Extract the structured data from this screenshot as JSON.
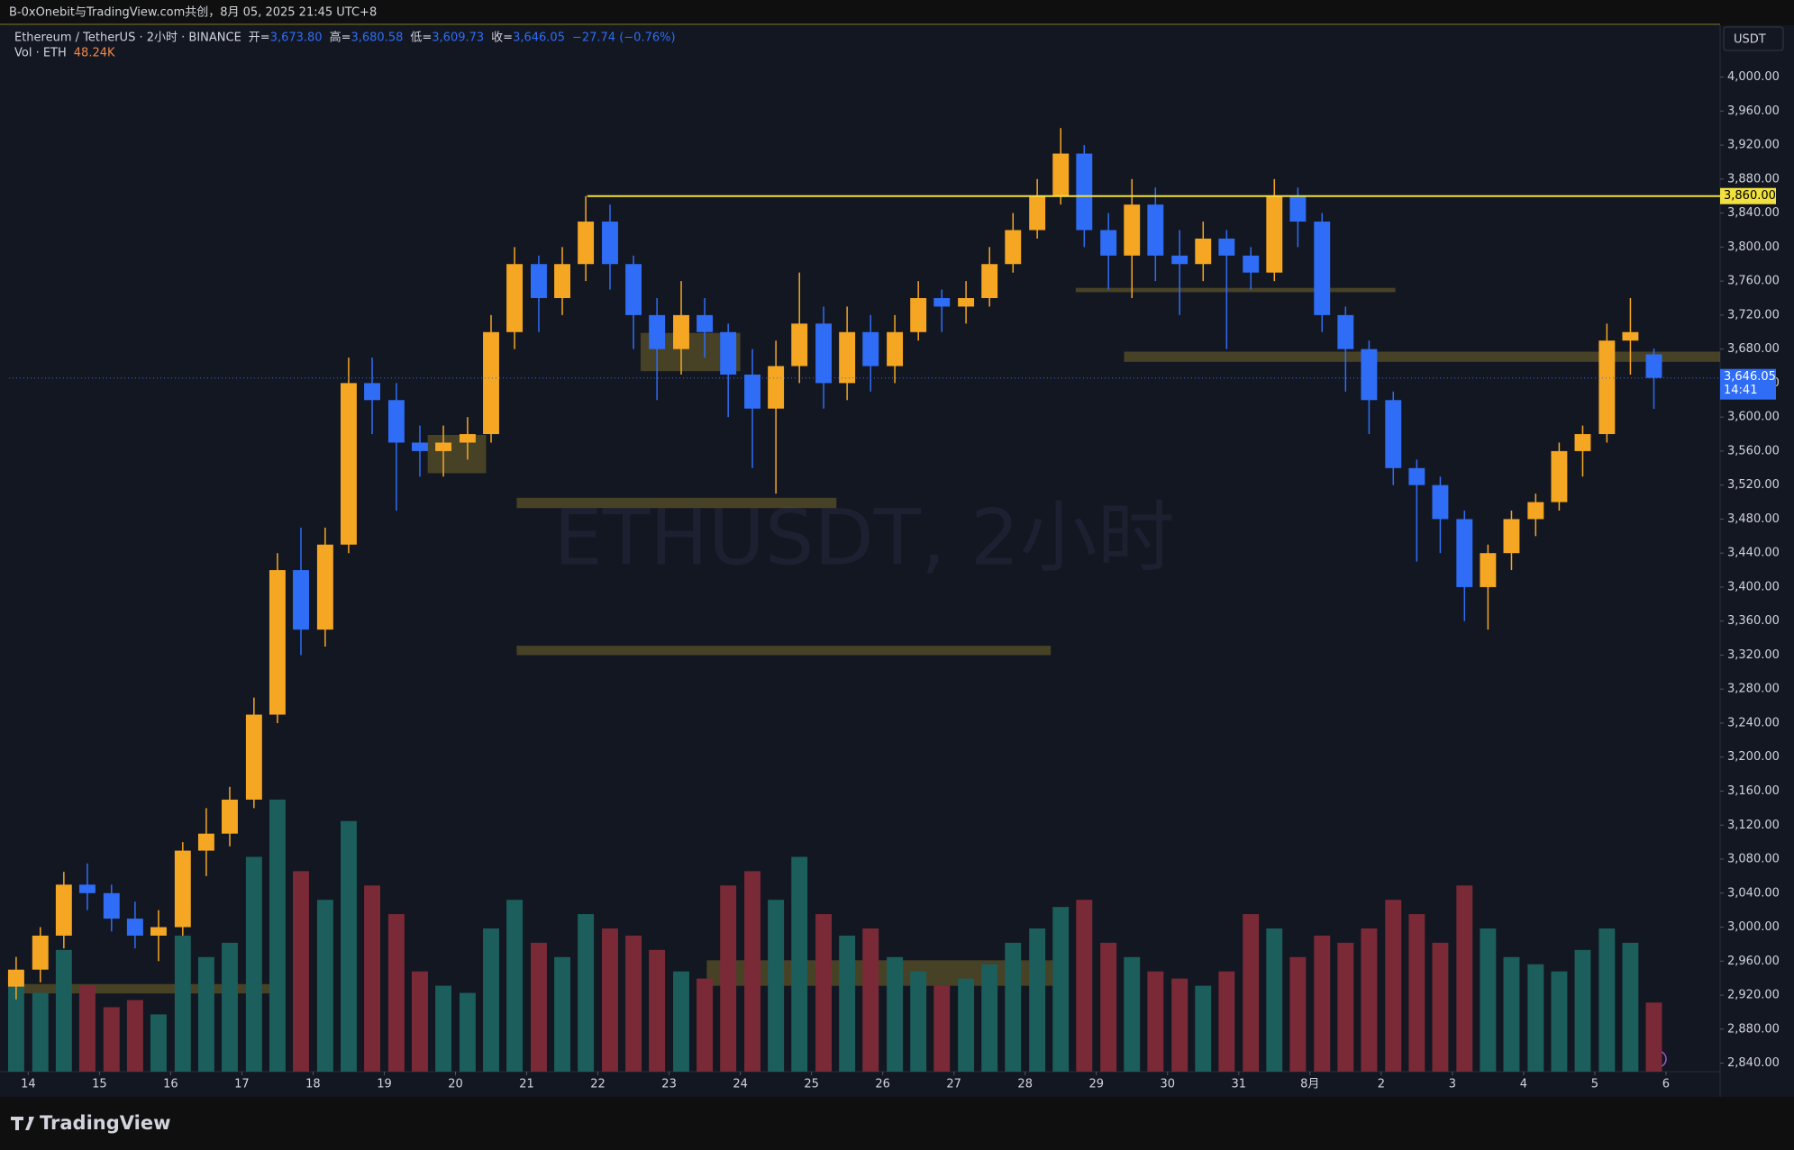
{
  "header": {
    "title": "B-0xOnebit与TradingView.com共创，8月 05, 2025 21:45 UTC+8"
  },
  "chart_data": {
    "type": "candlestick",
    "legend": {
      "symbol": "Ethereum / TetherUS · 2小时 · BINANCE",
      "fields": [
        {
          "label": "开=",
          "value": "3,673.80"
        },
        {
          "label": "高=",
          "value": "3,680.58"
        },
        {
          "label": "低=",
          "value": "3,609.73"
        },
        {
          "label": "收=",
          "value": "3,646.05"
        }
      ],
      "change": "−27.74 (−0.76%)",
      "volume_label": "Vol · ETH",
      "volume_value": "48.24K"
    },
    "watermark": "ETHUSDT, 2小时",
    "currency": "USDT",
    "up_color": "#f5a623",
    "down_color": "#2f6df6",
    "volume_up_color": "#1b5e5c",
    "volume_down_color": "#7a2a36",
    "x": [
      -0.17,
      0.17,
      0.5,
      0.83,
      1.17,
      1.5,
      1.83,
      2.17,
      2.5,
      2.83,
      3.17,
      3.5,
      3.83,
      4.17,
      4.5,
      4.83,
      5.17,
      5.5,
      5.83,
      6.17,
      6.5,
      6.83,
      7.17,
      7.5,
      7.83,
      8.17,
      8.5,
      8.83,
      9.17,
      9.5,
      9.83,
      10.17,
      10.5,
      10.83,
      11.17,
      11.5,
      11.83,
      12.17,
      12.5,
      12.83,
      13.17,
      13.5,
      13.83,
      14.17,
      14.5,
      14.83,
      15.17,
      15.5,
      15.83,
      16.17,
      16.5,
      16.83,
      17.17,
      17.5,
      17.83,
      18.17,
      18.5,
      18.83,
      19.17,
      19.5,
      19.83,
      20.17,
      20.5,
      20.83,
      21.17,
      21.5,
      21.83,
      22.17,
      22.5,
      22.83
    ],
    "open": [
      2930,
      2950,
      2990,
      3050,
      3040,
      3010,
      2990,
      3000,
      3090,
      3110,
      3150,
      3250,
      3420,
      3350,
      3450,
      3640,
      3620,
      3570,
      3560,
      3570,
      3580,
      3700,
      3780,
      3740,
      3780,
      3830,
      3780,
      3720,
      3680,
      3720,
      3700,
      3650,
      3610,
      3660,
      3710,
      3640,
      3700,
      3660,
      3700,
      3740,
      3730,
      3740,
      3780,
      3820,
      3860,
      3910,
      3820,
      3790,
      3850,
      3790,
      3780,
      3810,
      3790,
      3770,
      3860,
      3830,
      3720,
      3680,
      3620,
      3540,
      3520,
      3480,
      3400,
      3440,
      3480,
      3500,
      3560,
      3580,
      3690,
      3673.8
    ],
    "high": [
      2965,
      3000,
      3065,
      3075,
      3050,
      3030,
      3020,
      3100,
      3140,
      3165,
      3270,
      3440,
      3470,
      3470,
      3670,
      3670,
      3640,
      3590,
      3590,
      3600,
      3720,
      3800,
      3790,
      3800,
      3860,
      3850,
      3790,
      3740,
      3760,
      3740,
      3710,
      3680,
      3690,
      3770,
      3730,
      3730,
      3720,
      3720,
      3760,
      3750,
      3760,
      3800,
      3840,
      3880,
      3940,
      3920,
      3840,
      3880,
      3870,
      3820,
      3830,
      3820,
      3800,
      3880,
      3870,
      3840,
      3730,
      3690,
      3630,
      3550,
      3530,
      3490,
      3450,
      3490,
      3510,
      3570,
      3590,
      3710,
      3740,
      3680.58
    ],
    "low": [
      2915,
      2935,
      2975,
      3020,
      2995,
      2975,
      2960,
      2990,
      3060,
      3095,
      3140,
      3240,
      3320,
      3330,
      3440,
      3580,
      3490,
      3530,
      3530,
      3550,
      3570,
      3680,
      3700,
      3720,
      3760,
      3750,
      3680,
      3620,
      3650,
      3670,
      3600,
      3540,
      3510,
      3640,
      3610,
      3620,
      3630,
      3640,
      3690,
      3700,
      3710,
      3730,
      3770,
      3810,
      3850,
      3800,
      3750,
      3740,
      3760,
      3720,
      3760,
      3680,
      3750,
      3760,
      3800,
      3700,
      3630,
      3580,
      3520,
      3430,
      3440,
      3360,
      3350,
      3420,
      3460,
      3490,
      3530,
      3570,
      3650,
      3609.73
    ],
    "close": [
      2950,
      2990,
      3050,
      3040,
      3010,
      2990,
      3000,
      3090,
      3110,
      3150,
      3250,
      3420,
      3350,
      3450,
      3640,
      3620,
      3570,
      3560,
      3570,
      3580,
      3700,
      3780,
      3740,
      3780,
      3830,
      3780,
      3720,
      3680,
      3720,
      3700,
      3650,
      3610,
      3660,
      3710,
      3640,
      3700,
      3660,
      3700,
      3740,
      3730,
      3740,
      3780,
      3820,
      3860,
      3910,
      3820,
      3790,
      3850,
      3790,
      3780,
      3810,
      3790,
      3770,
      3860,
      3830,
      3720,
      3680,
      3620,
      3540,
      3520,
      3480,
      3400,
      3440,
      3480,
      3500,
      3560,
      3580,
      3690,
      3700,
      3646.05
    ],
    "volume": [
      70,
      55,
      85,
      60,
      45,
      50,
      40,
      95,
      80,
      90,
      150,
      190,
      140,
      120,
      175,
      130,
      110,
      70,
      60,
      55,
      100,
      120,
      90,
      80,
      110,
      100,
      95,
      85,
      70,
      65,
      130,
      140,
      120,
      150,
      110,
      95,
      100,
      80,
      70,
      60,
      65,
      75,
      90,
      100,
      115,
      120,
      90,
      80,
      70,
      65,
      60,
      70,
      110,
      100,
      80,
      95,
      90,
      100,
      120,
      110,
      90,
      130,
      100,
      80,
      75,
      70,
      85,
      100,
      90,
      48.24
    ],
    "xlim": [
      -0.27,
      23.76
    ],
    "ylim": [
      2830,
      4061
    ],
    "xticks": [
      {
        "value": 0,
        "label": "14"
      },
      {
        "value": 1,
        "label": "15"
      },
      {
        "value": 2,
        "label": "16"
      },
      {
        "value": 3,
        "label": "17"
      },
      {
        "value": 4,
        "label": "18"
      },
      {
        "value": 5,
        "label": "19"
      },
      {
        "value": 6,
        "label": "20"
      },
      {
        "value": 7,
        "label": "21"
      },
      {
        "value": 8,
        "label": "22"
      },
      {
        "value": 9,
        "label": "23"
      },
      {
        "value": 10,
        "label": "24"
      },
      {
        "value": 11,
        "label": "25"
      },
      {
        "value": 12,
        "label": "26"
      },
      {
        "value": 13,
        "label": "27"
      },
      {
        "value": 14,
        "label": "28"
      },
      {
        "value": 15,
        "label": "29"
      },
      {
        "value": 16,
        "label": "30"
      },
      {
        "value": 17,
        "label": "31"
      },
      {
        "value": 18,
        "label": "8月"
      },
      {
        "value": 19,
        "label": "2"
      },
      {
        "value": 20,
        "label": "3"
      },
      {
        "value": 21,
        "label": "4"
      },
      {
        "value": 22,
        "label": "5"
      },
      {
        "value": 23,
        "label": "6"
      }
    ],
    "yticks": [
      {
        "value": 2840,
        "label": "2,840.00"
      },
      {
        "value": 2880,
        "label": "2,880.00"
      },
      {
        "value": 2920,
        "label": "2,920.00"
      },
      {
        "value": 2960,
        "label": "2,960.00"
      },
      {
        "value": 3000,
        "label": "3,000.00"
      },
      {
        "value": 3040,
        "label": "3,040.00"
      },
      {
        "value": 3080,
        "label": "3,080.00"
      },
      {
        "value": 3120,
        "label": "3,120.00"
      },
      {
        "value": 3160,
        "label": "3,160.00"
      },
      {
        "value": 3200,
        "label": "3,200.00"
      },
      {
        "value": 3240,
        "label": "3,240.00"
      },
      {
        "value": 3280,
        "label": "3,280.00"
      },
      {
        "value": 3320,
        "label": "3,320.00"
      },
      {
        "value": 3360,
        "label": "3,360.00"
      },
      {
        "value": 3400,
        "label": "3,400.00"
      },
      {
        "value": 3440,
        "label": "3,440.00"
      },
      {
        "value": 3480,
        "label": "3,480.00"
      },
      {
        "value": 3520,
        "label": "3,520.00"
      },
      {
        "value": 3560,
        "label": "3,560.00"
      },
      {
        "value": 3600,
        "label": "3,600.00"
      },
      {
        "value": 3640,
        "label": "3,640.00"
      },
      {
        "value": 3680,
        "label": "3,680.00"
      },
      {
        "value": 3720,
        "label": "3,720.00"
      },
      {
        "value": 3760,
        "label": "3,760.00"
      },
      {
        "value": 3800,
        "label": "3,800.00"
      },
      {
        "value": 3840,
        "label": "3,840.00"
      },
      {
        "value": 3880,
        "label": "3,880.00"
      },
      {
        "value": 3920,
        "label": "3,920.00"
      },
      {
        "value": 3960,
        "label": "3,960.00"
      },
      {
        "value": 4000,
        "label": "4,000.00"
      }
    ],
    "price_line": {
      "value": 3860,
      "label": "3,860.00",
      "x0": 7.85,
      "color": "#f0e040"
    },
    "last_price": {
      "value": 3646.05,
      "label": "3,646.05",
      "countdown": "14:41",
      "color": "#2f6df6"
    },
    "zones": [
      {
        "x0": 6.86,
        "x1": 11.35,
        "p0": 3493,
        "p1": 3505
      },
      {
        "x0": 6.86,
        "x1": 14.36,
        "p0": 3320,
        "p1": 3331
      },
      {
        "x0": 14.71,
        "x1": 19.2,
        "p0": 3747,
        "p1": 3752
      },
      {
        "x0": 15.39,
        "x1": 23.76,
        "p0": 3665,
        "p1": 3677
      },
      {
        "x0": 8.6,
        "x1": 10.0,
        "p0": 3654,
        "p1": 3699
      },
      {
        "x0": 5.61,
        "x1": 6.43,
        "p0": 3534,
        "p1": 3579
      },
      {
        "x0": 9.53,
        "x1": 14.6,
        "p0": 2931,
        "p1": 2961
      },
      {
        "x0": -0.27,
        "x1": 3.49,
        "p0": 2922,
        "p1": 2933
      }
    ],
    "zone_color": "#6b5f2a"
  },
  "footer": {
    "brand": "TradingView"
  }
}
